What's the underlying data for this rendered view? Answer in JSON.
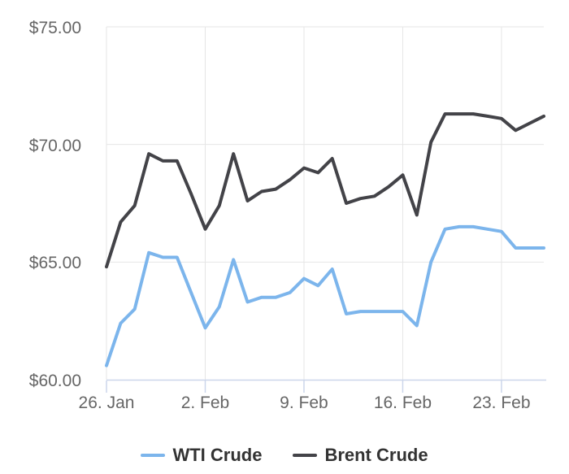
{
  "chart_data": {
    "type": "line",
    "x": [
      "Jan 26",
      "Jan 27",
      "Jan 28",
      "Jan 29",
      "Jan 30",
      "Jan 31",
      "Feb 1",
      "Feb 2",
      "Feb 3",
      "Feb 4",
      "Feb 5",
      "Feb 6",
      "Feb 7",
      "Feb 8",
      "Feb 9",
      "Feb 10",
      "Feb 11",
      "Feb 12",
      "Feb 13",
      "Feb 14",
      "Feb 15",
      "Feb 16",
      "Feb 17",
      "Feb 18",
      "Feb 19",
      "Feb 20",
      "Feb 21",
      "Feb 22",
      "Feb 23",
      "Feb 24",
      "Feb 25",
      "Feb 26"
    ],
    "series": [
      {
        "name": "WTI Crude",
        "color": "#7cb5ec",
        "values": [
          60.6,
          62.4,
          63.0,
          65.4,
          65.2,
          65.2,
          63.7,
          62.2,
          63.1,
          65.1,
          63.3,
          63.5,
          63.5,
          63.7,
          64.3,
          64.0,
          64.7,
          62.8,
          62.9,
          62.9,
          62.9,
          62.9,
          62.3,
          65.0,
          66.4,
          66.5,
          66.5,
          66.4,
          66.3,
          65.6,
          65.6,
          65.6
        ]
      },
      {
        "name": "Brent Crude",
        "color": "#434348",
        "values": [
          64.8,
          66.7,
          67.4,
          69.6,
          69.3,
          69.3,
          67.9,
          66.4,
          67.4,
          69.6,
          67.6,
          68.0,
          68.1,
          68.5,
          69.0,
          68.8,
          69.4,
          67.5,
          67.7,
          67.8,
          68.2,
          68.7,
          67.0,
          70.1,
          71.3,
          71.3,
          71.3,
          71.2,
          71.1,
          70.6,
          70.9,
          71.2
        ]
      }
    ],
    "ylim": [
      60,
      75
    ],
    "y_ticks": [
      75,
      70,
      65,
      60
    ],
    "y_tick_labels": [
      "$75.00",
      "$70.00",
      "$65.00",
      "$60.00"
    ],
    "x_tick_indices": [
      0,
      7,
      14,
      21,
      28
    ],
    "x_tick_labels": [
      "26. Jan",
      "2. Feb",
      "9. Feb",
      "16. Feb",
      "23. Feb"
    ],
    "grid": true,
    "legend_position": "bottom",
    "colors": {
      "background": "#ffffff",
      "grid": "#e6e6e6",
      "axis_line": "#ccd6eb",
      "tick_mark": "#ccd6eb",
      "axis_label_text": "#666666",
      "legend_text": "#333333"
    }
  }
}
